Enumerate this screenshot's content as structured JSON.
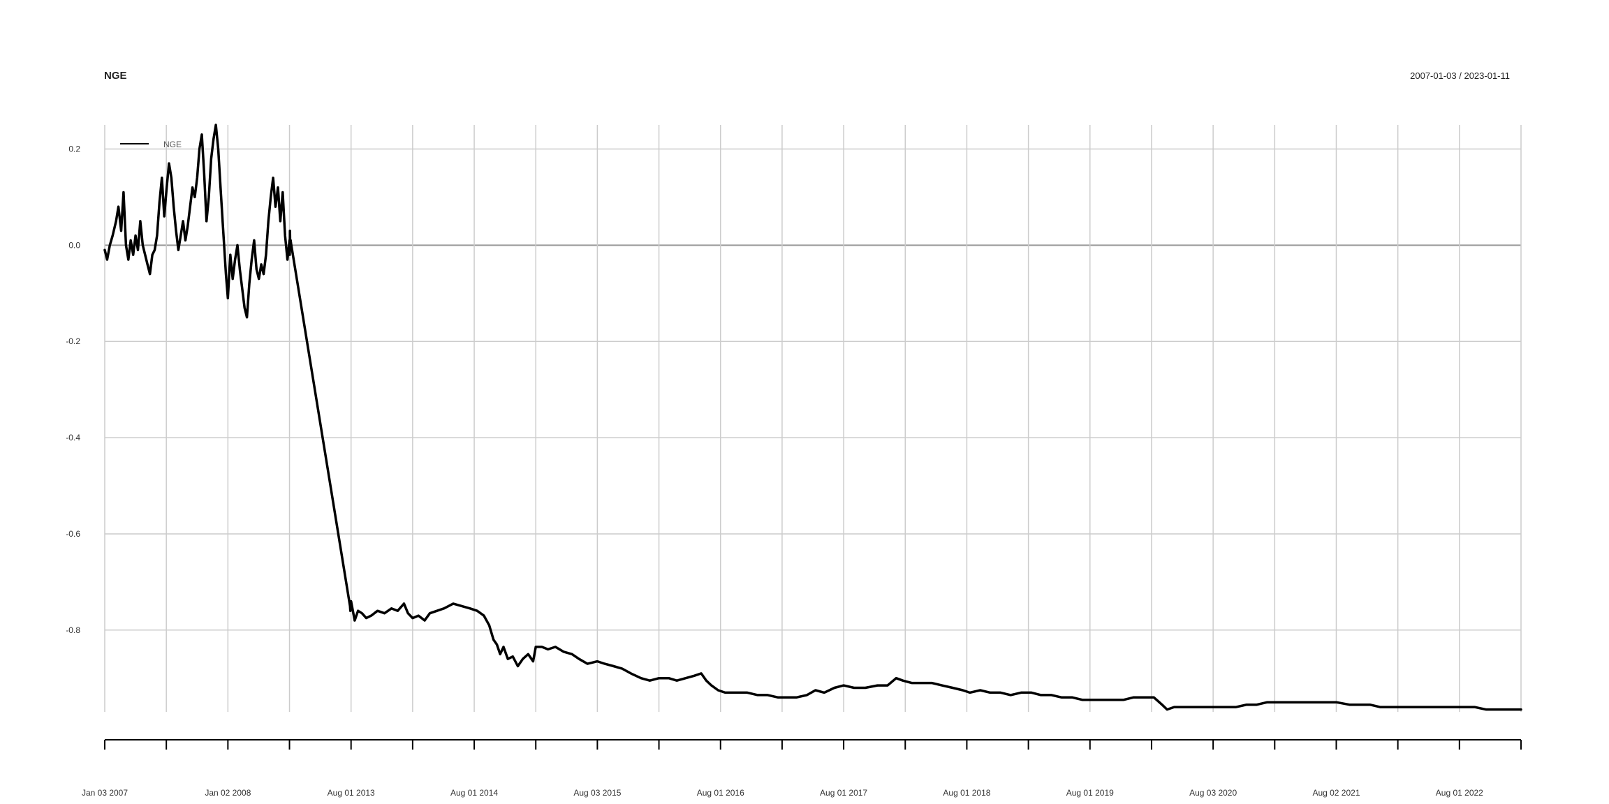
{
  "chart_data": {
    "type": "line",
    "title": "NGE",
    "date_range": "2007-01-03 / 2023-01-11",
    "xlabel": "",
    "ylabel": "",
    "ylim": [
      -0.97,
      0.25
    ],
    "xlim": [
      "2007-01-03",
      "2023-01-11"
    ],
    "grid": true,
    "legend_position": "top-left",
    "colors": {
      "series": "#000000",
      "grid": "#cccccc",
      "zero_line": "#999999"
    },
    "y_ticks": [
      {
        "value": 0.2,
        "label": "0.2"
      },
      {
        "value": 0.0,
        "label": "0.0"
      },
      {
        "value": -0.2,
        "label": "-0.2"
      },
      {
        "value": -0.4,
        "label": "-0.4"
      },
      {
        "value": -0.6,
        "label": "-0.6"
      },
      {
        "value": -0.8,
        "label": "-0.8"
      }
    ],
    "x_ticks": [
      {
        "date": "2007-01-03",
        "label": "Jan 03 2007"
      },
      {
        "date": "2007-07-02",
        "label": ""
      },
      {
        "date": "2008-01-02",
        "label": "Jan 02 2008"
      },
      {
        "date": "2008-07-01",
        "label": ""
      },
      {
        "date": "2013-08-01",
        "label": "Aug 01 2013"
      },
      {
        "date": "2014-02-03",
        "label": ""
      },
      {
        "date": "2014-08-01",
        "label": "Aug 01 2014"
      },
      {
        "date": "2015-02-02",
        "label": ""
      },
      {
        "date": "2015-08-03",
        "label": "Aug 03 2015"
      },
      {
        "date": "2016-02-01",
        "label": ""
      },
      {
        "date": "2016-08-01",
        "label": "Aug 01 2016"
      },
      {
        "date": "2017-02-01",
        "label": ""
      },
      {
        "date": "2017-08-01",
        "label": "Aug 01 2017"
      },
      {
        "date": "2018-02-01",
        "label": ""
      },
      {
        "date": "2018-08-01",
        "label": "Aug 01 2018"
      },
      {
        "date": "2019-02-01",
        "label": ""
      },
      {
        "date": "2019-08-01",
        "label": "Aug 01 2019"
      },
      {
        "date": "2020-02-03",
        "label": ""
      },
      {
        "date": "2020-08-03",
        "label": "Aug 03 2020"
      },
      {
        "date": "2021-02-01",
        "label": ""
      },
      {
        "date": "2021-08-02",
        "label": "Aug 02 2021"
      },
      {
        "date": "2022-02-01",
        "label": ""
      },
      {
        "date": "2022-08-01",
        "label": "Aug 01 2022"
      },
      {
        "date": "2023-01-11",
        "label": ""
      }
    ],
    "series": [
      {
        "name": "NGE",
        "points": [
          [
            "2007-01-03",
            -0.01
          ],
          [
            "2007-01-10",
            -0.03
          ],
          [
            "2007-01-18",
            0.0
          ],
          [
            "2007-01-26",
            0.02
          ],
          [
            "2007-02-05",
            0.05
          ],
          [
            "2007-02-12",
            0.08
          ],
          [
            "2007-02-20",
            0.03
          ],
          [
            "2007-02-27",
            0.11
          ],
          [
            "2007-03-06",
            0.0
          ],
          [
            "2007-03-13",
            -0.03
          ],
          [
            "2007-03-20",
            0.01
          ],
          [
            "2007-03-27",
            -0.02
          ],
          [
            "2007-04-03",
            0.02
          ],
          [
            "2007-04-10",
            -0.01
          ],
          [
            "2007-04-17",
            0.05
          ],
          [
            "2007-04-24",
            0.0
          ],
          [
            "2007-05-01",
            -0.02
          ],
          [
            "2007-05-08",
            -0.04
          ],
          [
            "2007-05-15",
            -0.06
          ],
          [
            "2007-05-22",
            -0.02
          ],
          [
            "2007-05-29",
            -0.01
          ],
          [
            "2007-06-05",
            0.02
          ],
          [
            "2007-06-12",
            0.09
          ],
          [
            "2007-06-19",
            0.14
          ],
          [
            "2007-06-26",
            0.06
          ],
          [
            "2007-07-03",
            0.12
          ],
          [
            "2007-07-10",
            0.17
          ],
          [
            "2007-07-17",
            0.14
          ],
          [
            "2007-07-24",
            0.08
          ],
          [
            "2007-07-31",
            0.03
          ],
          [
            "2007-08-07",
            -0.01
          ],
          [
            "2007-08-14",
            0.02
          ],
          [
            "2007-08-21",
            0.05
          ],
          [
            "2007-08-28",
            0.01
          ],
          [
            "2007-09-04",
            0.04
          ],
          [
            "2007-09-11",
            0.08
          ],
          [
            "2007-09-18",
            0.12
          ],
          [
            "2007-09-25",
            0.1
          ],
          [
            "2007-10-02",
            0.14
          ],
          [
            "2007-10-09",
            0.2
          ],
          [
            "2007-10-16",
            0.23
          ],
          [
            "2007-10-23",
            0.15
          ],
          [
            "2007-10-30",
            0.05
          ],
          [
            "2007-11-06",
            0.1
          ],
          [
            "2007-11-13",
            0.18
          ],
          [
            "2007-11-20",
            0.22
          ],
          [
            "2007-11-27",
            0.25
          ],
          [
            "2007-12-04",
            0.2
          ],
          [
            "2007-12-11",
            0.12
          ],
          [
            "2007-12-18",
            0.04
          ],
          [
            "2007-12-27",
            -0.06
          ],
          [
            "2008-01-02",
            -0.11
          ],
          [
            "2008-01-09",
            -0.02
          ],
          [
            "2008-01-16",
            -0.07
          ],
          [
            "2008-01-23",
            -0.03
          ],
          [
            "2008-01-30",
            0.0
          ],
          [
            "2008-02-06",
            -0.05
          ],
          [
            "2008-02-13",
            -0.09
          ],
          [
            "2008-02-20",
            -0.13
          ],
          [
            "2008-02-27",
            -0.15
          ],
          [
            "2008-03-05",
            -0.08
          ],
          [
            "2008-03-12",
            -0.03
          ],
          [
            "2008-03-19",
            0.01
          ],
          [
            "2008-03-26",
            -0.05
          ],
          [
            "2008-04-02",
            -0.07
          ],
          [
            "2008-04-09",
            -0.04
          ],
          [
            "2008-04-16",
            -0.06
          ],
          [
            "2008-04-23",
            -0.02
          ],
          [
            "2008-04-30",
            0.05
          ],
          [
            "2008-05-07",
            0.1
          ],
          [
            "2008-05-14",
            0.14
          ],
          [
            "2008-05-21",
            0.08
          ],
          [
            "2008-05-28",
            0.12
          ],
          [
            "2008-06-04",
            0.05
          ],
          [
            "2008-06-11",
            0.11
          ],
          [
            "2008-06-18",
            0.02
          ],
          [
            "2008-06-25",
            -0.03
          ],
          [
            "2008-07-02",
            0.01
          ],
          [
            "2008-07-09",
            -0.02
          ],
          [
            "2008-07-16",
            0.03
          ],
          [
            "2008-07-23",
            -0.01
          ],
          [
            "2008-07-30",
            0.01
          ],
          [
            "2008-08-06",
            0.01
          ],
          [
            "2008-08-13",
            0.005
          ],
          [
            "2013-07-01",
            -0.75
          ],
          [
            "2013-07-10",
            -0.76
          ],
          [
            "2013-07-22",
            -0.75
          ],
          [
            "2013-08-01",
            -0.74
          ],
          [
            "2013-08-12",
            -0.78
          ],
          [
            "2013-08-22",
            -0.76
          ],
          [
            "2013-09-03",
            -0.765
          ],
          [
            "2013-09-16",
            -0.775
          ],
          [
            "2013-10-01",
            -0.77
          ],
          [
            "2013-10-20",
            -0.76
          ],
          [
            "2013-11-10",
            -0.765
          ],
          [
            "2013-12-01",
            -0.755
          ],
          [
            "2013-12-20",
            -0.76
          ],
          [
            "2014-01-08",
            -0.745
          ],
          [
            "2014-01-20",
            -0.765
          ],
          [
            "2014-02-03",
            -0.775
          ],
          [
            "2014-02-20",
            -0.77
          ],
          [
            "2014-03-10",
            -0.78
          ],
          [
            "2014-03-25",
            -0.765
          ],
          [
            "2014-04-15",
            -0.76
          ],
          [
            "2014-05-05",
            -0.755
          ],
          [
            "2014-06-01",
            -0.745
          ],
          [
            "2014-06-25",
            -0.75
          ],
          [
            "2014-07-20",
            -0.755
          ],
          [
            "2014-08-10",
            -0.76
          ],
          [
            "2014-08-30",
            -0.77
          ],
          [
            "2014-09-15",
            -0.79
          ],
          [
            "2014-09-28",
            -0.82
          ],
          [
            "2014-10-08",
            -0.83
          ],
          [
            "2014-10-18",
            -0.85
          ],
          [
            "2014-10-28",
            -0.835
          ],
          [
            "2014-11-10",
            -0.86
          ],
          [
            "2014-11-25",
            -0.855
          ],
          [
            "2014-12-10",
            -0.875
          ],
          [
            "2014-12-25",
            -0.86
          ],
          [
            "2015-01-10",
            -0.85
          ],
          [
            "2015-01-25",
            -0.865
          ],
          [
            "2015-02-02",
            -0.835
          ],
          [
            "2015-02-20",
            -0.835
          ],
          [
            "2015-03-10",
            -0.84
          ],
          [
            "2015-04-01",
            -0.835
          ],
          [
            "2015-04-25",
            -0.845
          ],
          [
            "2015-05-20",
            -0.85
          ],
          [
            "2015-06-10",
            -0.86
          ],
          [
            "2015-07-05",
            -0.87
          ],
          [
            "2015-08-03",
            -0.865
          ],
          [
            "2015-08-25",
            -0.87
          ],
          [
            "2015-09-20",
            -0.875
          ],
          [
            "2015-10-15",
            -0.88
          ],
          [
            "2015-11-10",
            -0.89
          ],
          [
            "2015-12-10",
            -0.9
          ],
          [
            "2016-01-05",
            -0.905
          ],
          [
            "2016-02-01",
            -0.9
          ],
          [
            "2016-03-01",
            -0.9
          ],
          [
            "2016-03-25",
            -0.905
          ],
          [
            "2016-04-20",
            -0.9
          ],
          [
            "2016-05-15",
            -0.895
          ],
          [
            "2016-06-05",
            -0.89
          ],
          [
            "2016-06-20",
            -0.905
          ],
          [
            "2016-07-05",
            -0.915
          ],
          [
            "2016-07-25",
            -0.925
          ],
          [
            "2016-08-15",
            -0.93
          ],
          [
            "2016-09-15",
            -0.93
          ],
          [
            "2016-10-20",
            -0.93
          ],
          [
            "2016-11-20",
            -0.935
          ],
          [
            "2016-12-20",
            -0.935
          ],
          [
            "2017-01-20",
            -0.94
          ],
          [
            "2017-02-15",
            -0.94
          ],
          [
            "2017-03-15",
            -0.94
          ],
          [
            "2017-04-15",
            -0.935
          ],
          [
            "2017-05-10",
            -0.925
          ],
          [
            "2017-06-05",
            -0.93
          ],
          [
            "2017-07-05",
            -0.92
          ],
          [
            "2017-08-01",
            -0.915
          ],
          [
            "2017-09-01",
            -0.92
          ],
          [
            "2017-10-05",
            -0.92
          ],
          [
            "2017-11-10",
            -0.915
          ],
          [
            "2017-12-10",
            -0.915
          ],
          [
            "2018-01-05",
            -0.9
          ],
          [
            "2018-01-25",
            -0.905
          ],
          [
            "2018-02-20",
            -0.91
          ],
          [
            "2018-03-20",
            -0.91
          ],
          [
            "2018-04-20",
            -0.91
          ],
          [
            "2018-05-20",
            -0.915
          ],
          [
            "2018-06-20",
            -0.92
          ],
          [
            "2018-07-20",
            -0.925
          ],
          [
            "2018-08-10",
            -0.93
          ],
          [
            "2018-09-10",
            -0.925
          ],
          [
            "2018-10-10",
            -0.93
          ],
          [
            "2018-11-10",
            -0.93
          ],
          [
            "2018-12-10",
            -0.935
          ],
          [
            "2019-01-10",
            -0.93
          ],
          [
            "2019-02-10",
            -0.93
          ],
          [
            "2019-03-10",
            -0.935
          ],
          [
            "2019-04-10",
            -0.935
          ],
          [
            "2019-05-10",
            -0.94
          ],
          [
            "2019-06-10",
            -0.94
          ],
          [
            "2019-07-10",
            -0.945
          ],
          [
            "2019-08-10",
            -0.945
          ],
          [
            "2019-09-10",
            -0.945
          ],
          [
            "2019-10-10",
            -0.945
          ],
          [
            "2019-11-10",
            -0.945
          ],
          [
            "2019-12-10",
            -0.94
          ],
          [
            "2020-01-10",
            -0.94
          ],
          [
            "2020-02-10",
            -0.94
          ],
          [
            "2020-03-05",
            -0.955
          ],
          [
            "2020-03-20",
            -0.965
          ],
          [
            "2020-04-10",
            -0.96
          ],
          [
            "2020-05-10",
            -0.96
          ],
          [
            "2020-06-10",
            -0.96
          ],
          [
            "2020-07-10",
            -0.96
          ],
          [
            "2020-08-03",
            -0.96
          ],
          [
            "2020-09-10",
            -0.96
          ],
          [
            "2020-10-10",
            -0.96
          ],
          [
            "2020-11-10",
            -0.955
          ],
          [
            "2020-12-10",
            -0.955
          ],
          [
            "2021-01-10",
            -0.95
          ],
          [
            "2021-02-10",
            -0.95
          ],
          [
            "2021-03-10",
            -0.95
          ],
          [
            "2021-04-10",
            -0.95
          ],
          [
            "2021-05-10",
            -0.95
          ],
          [
            "2021-06-10",
            -0.95
          ],
          [
            "2021-07-10",
            -0.95
          ],
          [
            "2021-08-02",
            -0.95
          ],
          [
            "2021-09-10",
            -0.955
          ],
          [
            "2021-10-10",
            -0.955
          ],
          [
            "2021-11-10",
            -0.955
          ],
          [
            "2021-12-10",
            -0.96
          ],
          [
            "2022-01-10",
            -0.96
          ],
          [
            "2022-02-10",
            -0.96
          ],
          [
            "2022-03-10",
            -0.96
          ],
          [
            "2022-04-10",
            -0.96
          ],
          [
            "2022-05-10",
            -0.96
          ],
          [
            "2022-06-10",
            -0.96
          ],
          [
            "2022-07-10",
            -0.96
          ],
          [
            "2022-08-01",
            -0.96
          ],
          [
            "2022-09-10",
            -0.96
          ],
          [
            "2022-10-10",
            -0.965
          ],
          [
            "2022-11-10",
            -0.965
          ],
          [
            "2022-12-10",
            -0.965
          ],
          [
            "2023-01-11",
            -0.965
          ]
        ]
      }
    ]
  }
}
